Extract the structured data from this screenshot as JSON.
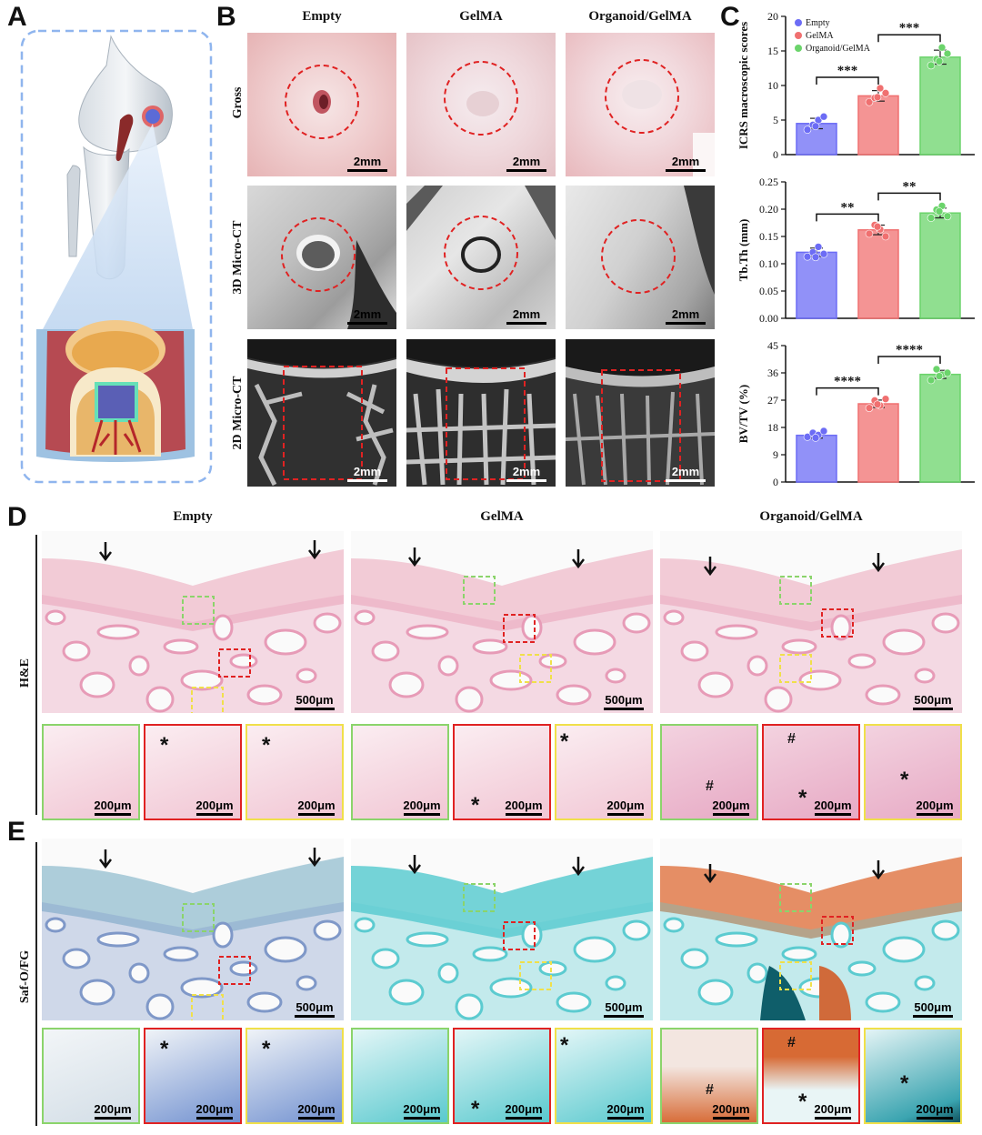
{
  "panels": {
    "A": "A",
    "B": "B",
    "C": "C",
    "D": "D",
    "E": "E"
  },
  "columns": [
    "Empty",
    "GelMA",
    "Organoid/GelMA"
  ],
  "rows_b": [
    "Gross",
    "3D Micro-CT",
    "2D Micro-CT"
  ],
  "rows_de": [
    "H&E",
    "Saf-O/FG"
  ],
  "scale": {
    "mm": "2mm",
    "um500": "500μm",
    "um200": "200μm"
  },
  "markers": {
    "star": "*",
    "hash": "#"
  },
  "colors": {
    "empty": "#6c6cf5",
    "gelma": "#f07070",
    "organoid": "#6bd46b"
  },
  "chart_data": [
    {
      "type": "bar",
      "categories": [
        "Empty",
        "GelMA",
        "Organoid/GelMA"
      ],
      "values": [
        4.5,
        8.5,
        14.1
      ],
      "points": [
        [
          3.6,
          4.3,
          5.0,
          5.5,
          4.1
        ],
        [
          7.6,
          8.2,
          9.6,
          8.9,
          8.3
        ],
        [
          12.9,
          13.8,
          15.5,
          14.6,
          13.5
        ]
      ],
      "ylabel": "ICRS macroscopic scores",
      "ylim": [
        0,
        20
      ],
      "yticks": [
        0,
        5,
        10,
        15,
        20
      ],
      "legend": [
        "Empty",
        "GelMA",
        "Organoid/GelMA"
      ],
      "legend_position": "top-left",
      "significance": [
        {
          "from": 0,
          "to": 1,
          "label": "***"
        },
        {
          "from": 1,
          "to": 2,
          "label": "***"
        }
      ]
    },
    {
      "type": "bar",
      "categories": [
        "Empty",
        "GelMA",
        "Organoid/GelMA"
      ],
      "values": [
        0.121,
        0.162,
        0.193
      ],
      "points": [
        [
          0.113,
          0.121,
          0.131,
          0.118,
          0.112
        ],
        [
          0.155,
          0.171,
          0.163,
          0.15,
          0.168
        ],
        [
          0.184,
          0.199,
          0.206,
          0.187,
          0.196
        ]
      ],
      "ylabel": "Tb.Th (mm)",
      "ylim": [
        0,
        0.25
      ],
      "yticks": [
        "0.00",
        "0.05",
        "0.10",
        "0.15",
        "0.20",
        "0.25"
      ],
      "significance": [
        {
          "from": 0,
          "to": 1,
          "label": "**"
        },
        {
          "from": 1,
          "to": 2,
          "label": "**"
        }
      ]
    },
    {
      "type": "bar",
      "categories": [
        "Empty",
        "GelMA",
        "Organoid/GelMA"
      ],
      "values": [
        15.4,
        25.8,
        35.5
      ],
      "points": [
        [
          14.9,
          16.2,
          15.5,
          16.8,
          14.6
        ],
        [
          24.4,
          26.9,
          25.2,
          27.4,
          25.6
        ],
        [
          33.6,
          37.2,
          35.4,
          36.0,
          34.9
        ]
      ],
      "ylabel": "BV/TV (%)",
      "ylim": [
        0,
        45
      ],
      "yticks": [
        0,
        9,
        18,
        27,
        36,
        45
      ],
      "significance": [
        {
          "from": 0,
          "to": 1,
          "label": "****"
        },
        {
          "from": 1,
          "to": 2,
          "label": "****"
        }
      ]
    }
  ]
}
